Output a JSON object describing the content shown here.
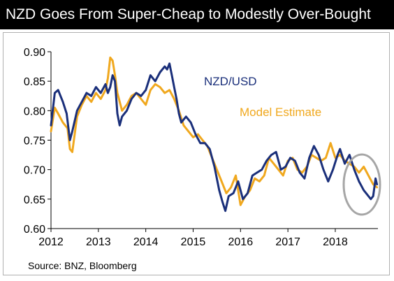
{
  "title": "NZD Goes From Super-Cheap to Modestly Over-Bought",
  "source": "Source: BNZ, Bloomberg",
  "colors": {
    "nzdusd": "#1a2f7a",
    "model": "#f0a81e",
    "highlight": "#a6a6a6"
  },
  "chart_data": {
    "type": "line",
    "title": "NZD Goes From Super-Cheap to Modestly Over-Bought",
    "xlabel": "",
    "ylabel": "",
    "xlim": [
      2012.0,
      2018.9
    ],
    "ylim": [
      0.6,
      0.9
    ],
    "xticks": [
      "2012",
      "2013",
      "2014",
      "2015",
      "2016",
      "2017",
      "2018"
    ],
    "yticks": [
      "0.90",
      "0.85",
      "0.80",
      "0.75",
      "0.70",
      "0.65",
      "0.60"
    ],
    "grid": false,
    "legend": "inline labels",
    "annotations": [
      "circle highlighting late-2018 divergence"
    ],
    "series": [
      {
        "name": "NZD/USD",
        "x": [
          2012.0,
          2012.08,
          2012.15,
          2012.25,
          2012.33,
          2012.4,
          2012.45,
          2012.55,
          2012.65,
          2012.75,
          2012.85,
          2012.95,
          2013.05,
          2013.15,
          2013.2,
          2013.25,
          2013.3,
          2013.35,
          2013.4,
          2013.45,
          2013.5,
          2013.6,
          2013.7,
          2013.8,
          2013.9,
          2014.0,
          2014.1,
          2014.2,
          2014.3,
          2014.4,
          2014.45,
          2014.5,
          2014.55,
          2014.6,
          2014.65,
          2014.7,
          2014.75,
          2014.85,
          2014.95,
          2015.05,
          2015.15,
          2015.25,
          2015.35,
          2015.45,
          2015.55,
          2015.62,
          2015.68,
          2015.75,
          2015.85,
          2015.95,
          2016.05,
          2016.15,
          2016.25,
          2016.35,
          2016.45,
          2016.55,
          2016.65,
          2016.75,
          2016.85,
          2016.95,
          2017.05,
          2017.15,
          2017.25,
          2017.35,
          2017.45,
          2017.55,
          2017.65,
          2017.75,
          2017.85,
          2017.95,
          2018.05,
          2018.1,
          2018.2,
          2018.3,
          2018.4,
          2018.5,
          2018.6,
          2018.7,
          2018.75,
          2018.8,
          2018.85,
          2018.88
        ],
        "values": [
          0.775,
          0.83,
          0.835,
          0.815,
          0.795,
          0.75,
          0.765,
          0.8,
          0.815,
          0.83,
          0.825,
          0.84,
          0.83,
          0.845,
          0.83,
          0.84,
          0.86,
          0.85,
          0.795,
          0.775,
          0.79,
          0.8,
          0.82,
          0.83,
          0.825,
          0.835,
          0.86,
          0.85,
          0.865,
          0.875,
          0.87,
          0.88,
          0.86,
          0.84,
          0.82,
          0.795,
          0.78,
          0.79,
          0.78,
          0.76,
          0.745,
          0.745,
          0.735,
          0.705,
          0.665,
          0.645,
          0.63,
          0.655,
          0.66,
          0.68,
          0.65,
          0.66,
          0.69,
          0.695,
          0.7,
          0.715,
          0.725,
          0.73,
          0.7,
          0.705,
          0.72,
          0.715,
          0.695,
          0.685,
          0.72,
          0.74,
          0.725,
          0.7,
          0.68,
          0.7,
          0.725,
          0.735,
          0.71,
          0.725,
          0.7,
          0.68,
          0.665,
          0.655,
          0.65,
          0.655,
          0.685,
          0.675
        ]
      },
      {
        "name": "Model Estimate",
        "x": [
          2012.0,
          2012.08,
          2012.15,
          2012.25,
          2012.35,
          2012.4,
          2012.45,
          2012.55,
          2012.65,
          2012.75,
          2012.85,
          2012.95,
          2013.05,
          2013.15,
          2013.2,
          2013.25,
          2013.3,
          2013.35,
          2013.4,
          2013.5,
          2013.6,
          2013.7,
          2013.8,
          2013.9,
          2014.0,
          2014.1,
          2014.2,
          2014.3,
          2014.4,
          2014.5,
          2014.6,
          2014.7,
          2014.8,
          2014.9,
          2015.0,
          2015.1,
          2015.2,
          2015.3,
          2015.4,
          2015.5,
          2015.6,
          2015.7,
          2015.8,
          2015.9,
          2016.0,
          2016.1,
          2016.2,
          2016.3,
          2016.4,
          2016.5,
          2016.6,
          2016.7,
          2016.8,
          2016.9,
          2017.0,
          2017.1,
          2017.2,
          2017.3,
          2017.4,
          2017.5,
          2017.6,
          2017.7,
          2017.8,
          2017.9,
          2018.0,
          2018.1,
          2018.2,
          2018.3,
          2018.4,
          2018.5,
          2018.6,
          2018.7,
          2018.8,
          2018.88
        ],
        "values": [
          0.765,
          0.805,
          0.795,
          0.78,
          0.77,
          0.735,
          0.73,
          0.79,
          0.81,
          0.825,
          0.815,
          0.83,
          0.82,
          0.835,
          0.855,
          0.89,
          0.885,
          0.86,
          0.83,
          0.8,
          0.81,
          0.825,
          0.83,
          0.82,
          0.81,
          0.835,
          0.845,
          0.84,
          0.83,
          0.835,
          0.82,
          0.8,
          0.775,
          0.765,
          0.755,
          0.76,
          0.75,
          0.74,
          0.72,
          0.7,
          0.68,
          0.66,
          0.67,
          0.69,
          0.64,
          0.655,
          0.665,
          0.685,
          0.68,
          0.69,
          0.72,
          0.71,
          0.7,
          0.69,
          0.715,
          0.72,
          0.7,
          0.695,
          0.705,
          0.725,
          0.72,
          0.715,
          0.72,
          0.745,
          0.72,
          0.725,
          0.715,
          0.71,
          0.705,
          0.695,
          0.705,
          0.69,
          0.675,
          0.67
        ]
      }
    ],
    "series_labels": [
      "NZD/USD",
      "Model Estimate"
    ]
  }
}
